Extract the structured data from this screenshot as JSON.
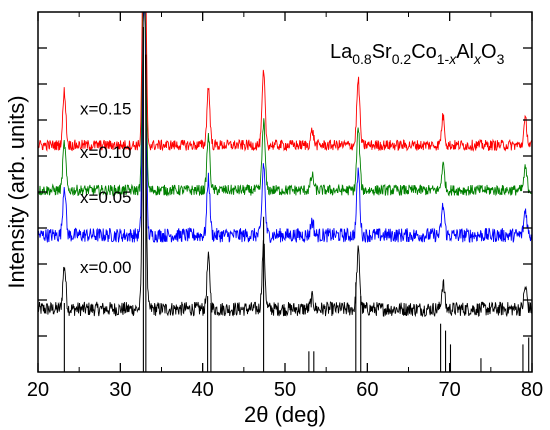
{
  "chart_data": {
    "type": "line",
    "title": "",
    "formula": {
      "parts": [
        {
          "text": "La",
          "style": "normal"
        },
        {
          "text": "0.8",
          "style": "sub"
        },
        {
          "text": "Sr",
          "style": "normal"
        },
        {
          "text": "0.2",
          "style": "sub"
        },
        {
          "text": "Co",
          "style": "normal"
        },
        {
          "text": "1-",
          "style": "sub"
        },
        {
          "text": "x",
          "style": "sub-italic"
        },
        {
          "text": "Al",
          "style": "normal"
        },
        {
          "text": "x",
          "style": "sub-italic"
        },
        {
          "text": "O",
          "style": "normal"
        },
        {
          "text": "3",
          "style": "sub"
        }
      ]
    },
    "xlabel": "2θ (deg)",
    "ylabel": "Intensity (arb. units)",
    "xlim": [
      20,
      80
    ],
    "xticks": [
      20,
      30,
      40,
      50,
      60,
      70,
      80
    ],
    "ylim": [
      0,
      100
    ],
    "grid": false,
    "series": [
      {
        "name": "x=0.00",
        "color": "#000000",
        "baseline": 17.5,
        "noise": 2.0,
        "label_at": [
          20.0,
          27.5
        ],
        "peak_heights": [
          12,
          100,
          14,
          18,
          3,
          16,
          7,
          6
        ]
      },
      {
        "name": "x=0.05",
        "color": "#0000ff",
        "baseline": 38.0,
        "noise": 2.0,
        "label_at": [
          20.0,
          47.0
        ],
        "peak_heights": [
          14,
          100,
          16,
          20,
          4,
          18,
          8,
          7
        ]
      },
      {
        "name": "x=0.10",
        "color": "#008000",
        "baseline": 50.5,
        "noise": 1.5,
        "label_at": [
          20.0,
          59.5
        ],
        "peak_heights": [
          13,
          95,
          15,
          19,
          4,
          17,
          7,
          6
        ]
      },
      {
        "name": "x=0.15",
        "color": "#ff0000",
        "baseline": 63.0,
        "noise": 1.5,
        "label_at": [
          20.0,
          71.5
        ],
        "peak_heights": [
          15,
          98,
          16,
          20,
          4,
          18,
          8,
          7
        ]
      }
    ],
    "peak_positions": [
      23.2,
      32.9,
      40.7,
      47.4,
      53.3,
      58.9,
      69.2,
      79.2
    ],
    "reference_pattern": {
      "color": "#000000",
      "peaks": [
        {
          "x": 23.2,
          "h": 20
        },
        {
          "x": 32.8,
          "h": 100
        },
        {
          "x": 33.1,
          "h": 92
        },
        {
          "x": 40.6,
          "h": 22
        },
        {
          "x": 41.0,
          "h": 20
        },
        {
          "x": 47.4,
          "h": 45
        },
        {
          "x": 52.9,
          "h": 6
        },
        {
          "x": 53.5,
          "h": 6
        },
        {
          "x": 58.6,
          "h": 26
        },
        {
          "x": 59.2,
          "h": 22
        },
        {
          "x": 68.9,
          "h": 14
        },
        {
          "x": 69.5,
          "h": 12
        },
        {
          "x": 70.1,
          "h": 8
        },
        {
          "x": 73.8,
          "h": 4
        },
        {
          "x": 78.9,
          "h": 8
        },
        {
          "x": 79.6,
          "h": 10
        }
      ]
    }
  }
}
